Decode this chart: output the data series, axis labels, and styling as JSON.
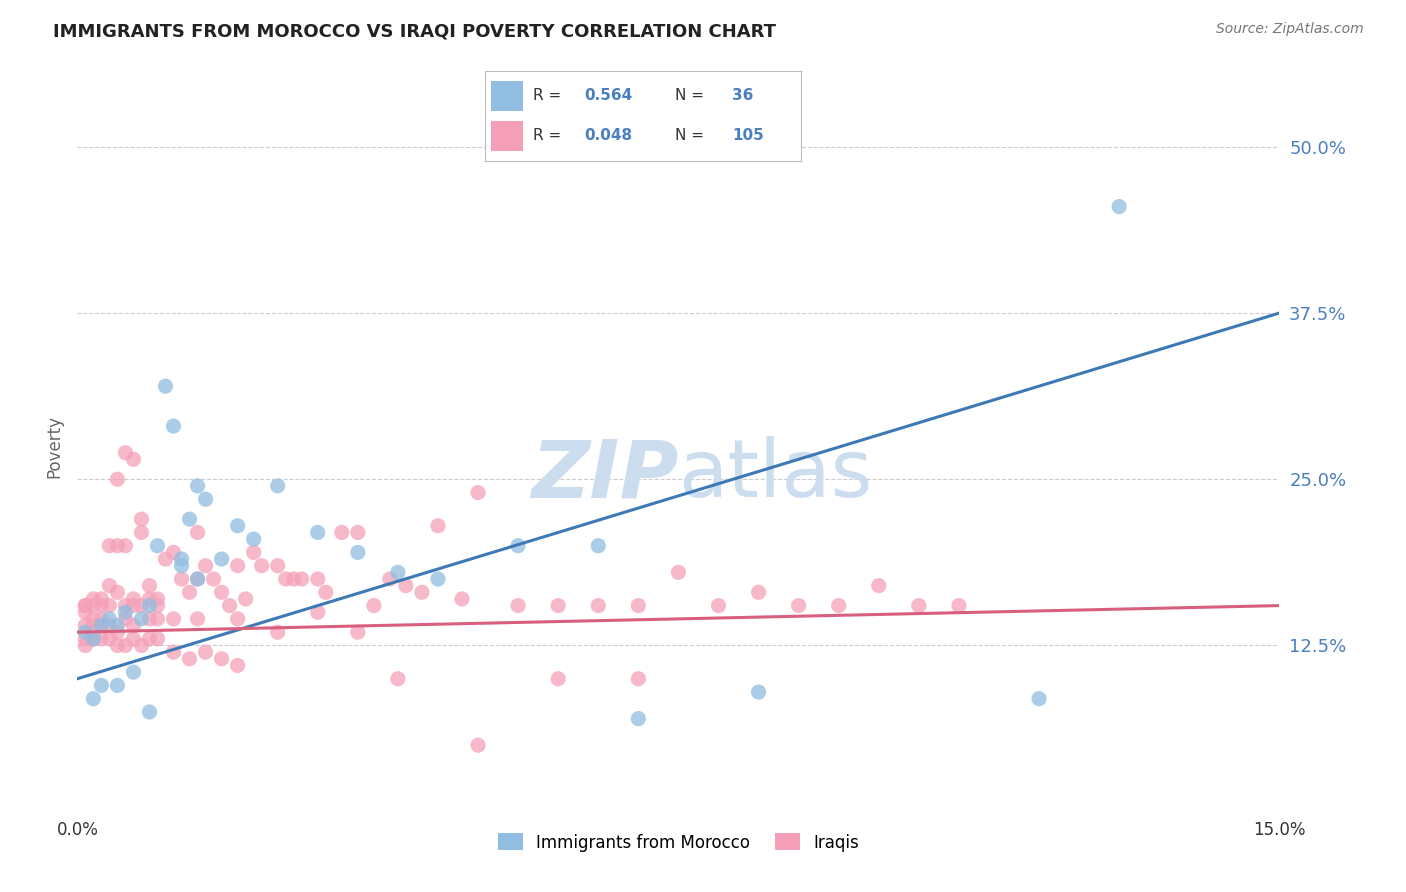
{
  "title": "IMMIGRANTS FROM MOROCCO VS IRAQI POVERTY CORRELATION CHART",
  "source": "Source: ZipAtlas.com",
  "ylabel": "Poverty",
  "ytick_labels": [
    "12.5%",
    "25.0%",
    "37.5%",
    "50.0%"
  ],
  "ytick_values": [
    0.125,
    0.25,
    0.375,
    0.5
  ],
  "xmin": 0.0,
  "xmax": 0.15,
  "ymin": 0.0,
  "ymax": 0.55,
  "color_morocco": "#90bde0",
  "color_iraq": "#f5a0b8",
  "color_blue_line": "#3d7ab5",
  "color_pink_line": "#d95f7f",
  "color_blue_text": "#4a7fc0",
  "watermark_color": "#ccddf0",
  "legend_label1": "Immigrants from Morocco",
  "legend_label2": "Iraqis",
  "morocco_line_y0": 0.1,
  "morocco_line_y1": 0.375,
  "iraq_line_y0": 0.135,
  "iraq_line_y1": 0.155,
  "morocco_x": [
    0.001,
    0.002,
    0.003,
    0.004,
    0.005,
    0.006,
    0.008,
    0.009,
    0.01,
    0.012,
    0.013,
    0.014,
    0.015,
    0.016,
    0.018,
    0.02,
    0.022,
    0.025,
    0.03,
    0.035,
    0.04,
    0.045,
    0.055,
    0.065,
    0.07,
    0.085,
    0.12,
    0.002,
    0.003,
    0.005,
    0.007,
    0.009,
    0.011,
    0.013,
    0.015,
    0.13
  ],
  "morocco_y": [
    0.135,
    0.13,
    0.14,
    0.145,
    0.14,
    0.15,
    0.145,
    0.155,
    0.2,
    0.29,
    0.19,
    0.22,
    0.245,
    0.235,
    0.19,
    0.215,
    0.205,
    0.245,
    0.21,
    0.195,
    0.18,
    0.175,
    0.2,
    0.2,
    0.07,
    0.09,
    0.085,
    0.085,
    0.095,
    0.095,
    0.105,
    0.075,
    0.32,
    0.185,
    0.175,
    0.455
  ],
  "iraq_x": [
    0.001,
    0.001,
    0.001,
    0.001,
    0.002,
    0.002,
    0.002,
    0.002,
    0.003,
    0.003,
    0.003,
    0.004,
    0.004,
    0.004,
    0.005,
    0.005,
    0.005,
    0.006,
    0.006,
    0.006,
    0.007,
    0.007,
    0.007,
    0.008,
    0.008,
    0.009,
    0.009,
    0.01,
    0.01,
    0.011,
    0.012,
    0.013,
    0.014,
    0.015,
    0.015,
    0.016,
    0.017,
    0.018,
    0.019,
    0.02,
    0.021,
    0.022,
    0.023,
    0.025,
    0.026,
    0.027,
    0.028,
    0.03,
    0.031,
    0.033,
    0.035,
    0.037,
    0.039,
    0.041,
    0.043,
    0.045,
    0.048,
    0.05,
    0.055,
    0.06,
    0.065,
    0.07,
    0.075,
    0.08,
    0.085,
    0.09,
    0.095,
    0.1,
    0.105,
    0.11,
    0.001,
    0.002,
    0.003,
    0.004,
    0.005,
    0.006,
    0.007,
    0.008,
    0.009,
    0.01,
    0.012,
    0.014,
    0.016,
    0.018,
    0.02,
    0.001,
    0.002,
    0.003,
    0.004,
    0.005,
    0.006,
    0.007,
    0.008,
    0.009,
    0.01,
    0.012,
    0.015,
    0.02,
    0.025,
    0.03,
    0.035,
    0.04,
    0.05,
    0.06,
    0.07
  ],
  "iraq_y": [
    0.14,
    0.13,
    0.125,
    0.155,
    0.145,
    0.135,
    0.13,
    0.16,
    0.16,
    0.155,
    0.14,
    0.14,
    0.155,
    0.17,
    0.135,
    0.165,
    0.2,
    0.145,
    0.2,
    0.27,
    0.14,
    0.16,
    0.265,
    0.155,
    0.22,
    0.145,
    0.17,
    0.145,
    0.16,
    0.19,
    0.195,
    0.175,
    0.165,
    0.175,
    0.21,
    0.185,
    0.175,
    0.165,
    0.155,
    0.185,
    0.16,
    0.195,
    0.185,
    0.185,
    0.175,
    0.175,
    0.175,
    0.175,
    0.165,
    0.21,
    0.21,
    0.155,
    0.175,
    0.17,
    0.165,
    0.215,
    0.16,
    0.24,
    0.155,
    0.155,
    0.155,
    0.155,
    0.18,
    0.155,
    0.165,
    0.155,
    0.155,
    0.17,
    0.155,
    0.155,
    0.15,
    0.14,
    0.13,
    0.13,
    0.125,
    0.125,
    0.13,
    0.125,
    0.13,
    0.13,
    0.12,
    0.115,
    0.12,
    0.115,
    0.11,
    0.155,
    0.155,
    0.145,
    0.2,
    0.25,
    0.155,
    0.155,
    0.21,
    0.16,
    0.155,
    0.145,
    0.145,
    0.145,
    0.135,
    0.15,
    0.135,
    0.1,
    0.05,
    0.1,
    0.1
  ]
}
